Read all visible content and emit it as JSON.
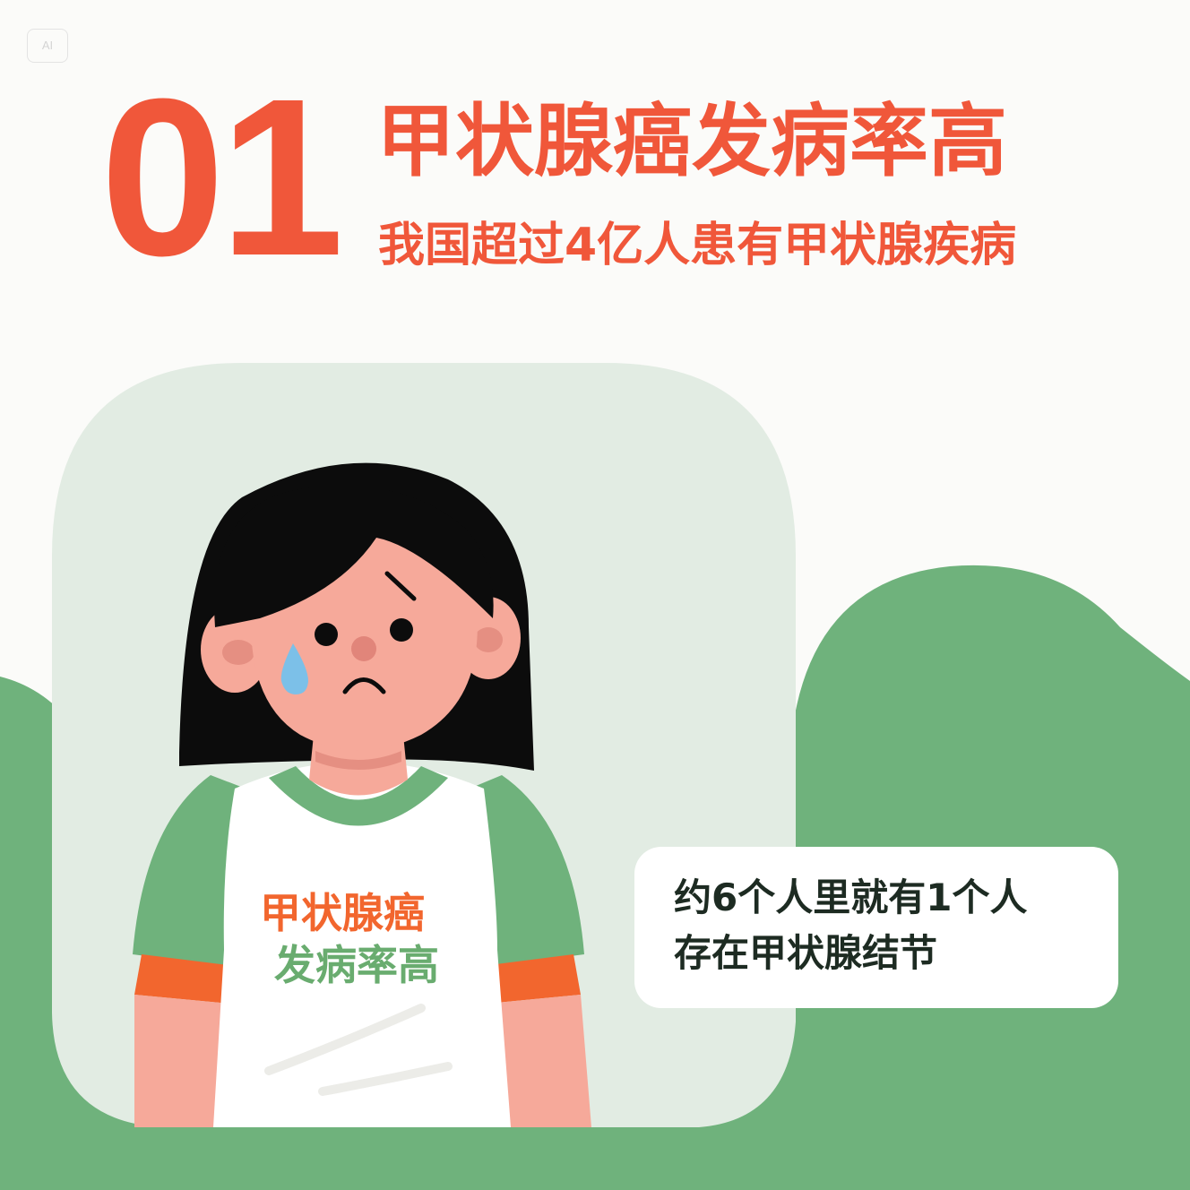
{
  "badge": {
    "label": "AI"
  },
  "header": {
    "number": "01",
    "title": "甲状腺癌发病率高",
    "subtitle": "我国超过4亿人患有甲状腺疾病"
  },
  "shirt": {
    "line1": "甲状腺癌",
    "line2": "发病率高"
  },
  "callout": {
    "line1": "约6个人里就有1个人",
    "line2": "存在甲状腺结节"
  },
  "colors": {
    "accent_red": "#f0573a",
    "green": "#6fb27c",
    "pale_green": "#e2ece3",
    "orange": "#f2662e",
    "skin": "#f6a99a"
  }
}
